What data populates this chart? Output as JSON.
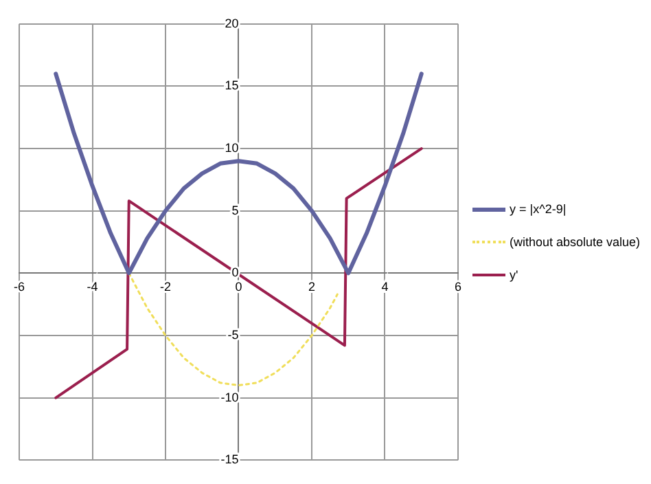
{
  "chart_data": {
    "type": "line",
    "xlim": [
      -6,
      6
    ],
    "xticks": [
      -6,
      -4,
      -2,
      0,
      2,
      4,
      6
    ],
    "ylim": [
      -15,
      20
    ],
    "yticks": [
      -15,
      -10,
      -5,
      0,
      5,
      10,
      15,
      20
    ],
    "grid": true,
    "legend": "right",
    "marker": "none",
    "series": [
      {
        "name": "y = |x^2-9|",
        "color": "#60639f",
        "line_style": "solid",
        "x": [
          -5,
          -4.5,
          -4,
          -3.5,
          -3,
          -2.5,
          -2,
          -1.5,
          -1,
          -0.5,
          0,
          0.5,
          1,
          1.5,
          2,
          2.5,
          3,
          3.5,
          4,
          4.5,
          5
        ],
        "values": [
          16,
          11.2,
          7,
          3.2,
          0,
          2.8,
          5,
          6.8,
          8,
          8.8,
          9,
          8.8,
          8,
          6.8,
          5,
          2.8,
          0,
          3.2,
          7,
          11.2,
          16
        ]
      },
      {
        "name": "(without absolute value)",
        "color": "#f0de5a",
        "line_style": "dotted",
        "x": [
          -3,
          -2.5,
          -2,
          -1.5,
          -1,
          -0.5,
          0,
          0.5,
          1,
          1.5,
          2,
          2.5,
          2.7
        ],
        "values": [
          0,
          -2.8,
          -5,
          -6.8,
          -8,
          -8.8,
          -9,
          -8.8,
          -8,
          -6.8,
          -5,
          -2.8,
          -1.7
        ]
      },
      {
        "name": "y'",
        "color": "#9b1f4e",
        "line_style": "solid",
        "x": [
          -5,
          -3.05,
          -3.0,
          2.9,
          2.95,
          5
        ],
        "values": [
          -10,
          -6.1,
          5.8,
          -5.8,
          6,
          10
        ]
      }
    ]
  }
}
